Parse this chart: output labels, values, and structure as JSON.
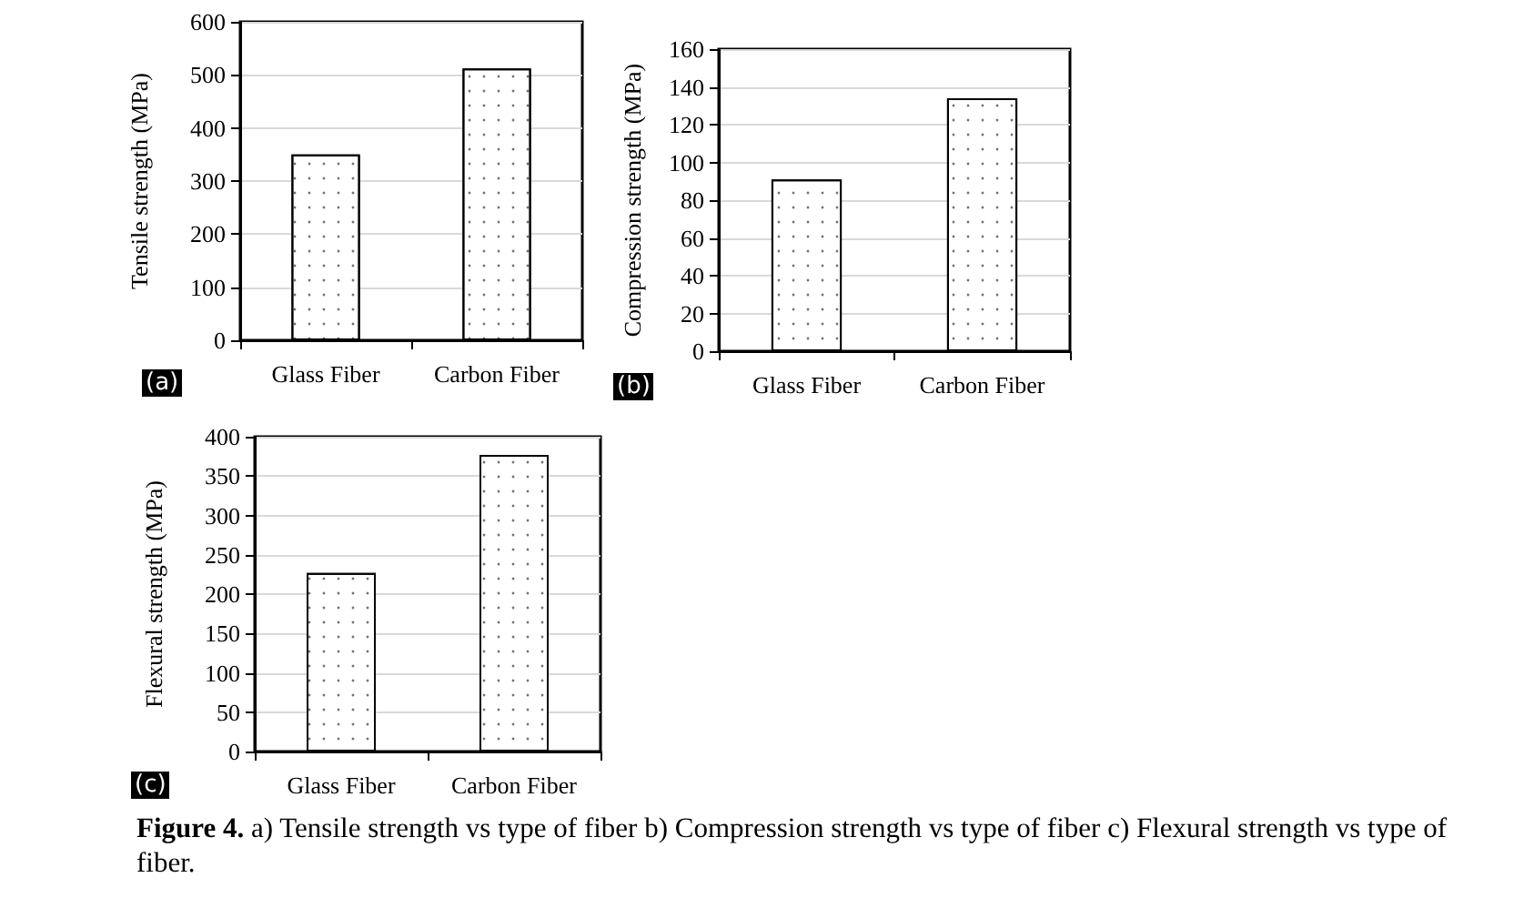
{
  "chart_data": [
    {
      "type": "bar",
      "categories": [
        "Glass Fiber",
        "Carbon Fiber"
      ],
      "series": [
        {
          "color": "#ffffff",
          "values": [
            350,
            512
          ]
        }
      ],
      "ylabel": "Tensile strength (MPa)",
      "ylim": [
        0,
        600
      ],
      "yticks": [
        0,
        100,
        200,
        300,
        400,
        500,
        600
      ],
      "grid": "y",
      "annotations": [
        "(a)"
      ]
    },
    {
      "type": "bar",
      "categories": [
        "Glass Fiber",
        "Carbon Fiber"
      ],
      "series": [
        {
          "color": "#ffffff",
          "values": [
            91,
            134
          ]
        }
      ],
      "ylabel": "Compression strength (MPa)",
      "ylim": [
        0,
        160
      ],
      "yticks": [
        0,
        20,
        40,
        60,
        80,
        100,
        120,
        140,
        160
      ],
      "grid": "y",
      "annotations": [
        "(b)"
      ]
    },
    {
      "type": "bar",
      "categories": [
        "Glass Fiber",
        "Carbon Fiber"
      ],
      "series": [
        {
          "color": "#ffffff",
          "values": [
            227,
            377
          ]
        }
      ],
      "ylabel": "Flexural strength (MPa)",
      "ylim": [
        0,
        400
      ],
      "yticks": [
        0,
        50,
        100,
        150,
        200,
        250,
        300,
        350,
        400
      ],
      "grid": "y",
      "annotations": [
        "(c)",
        "Figure 4.",
        "a) Tensile strength vs type of fiber b) Compression strength vs type of fiber c) Flexural strength vs type of fiber."
      ]
    }
  ]
}
